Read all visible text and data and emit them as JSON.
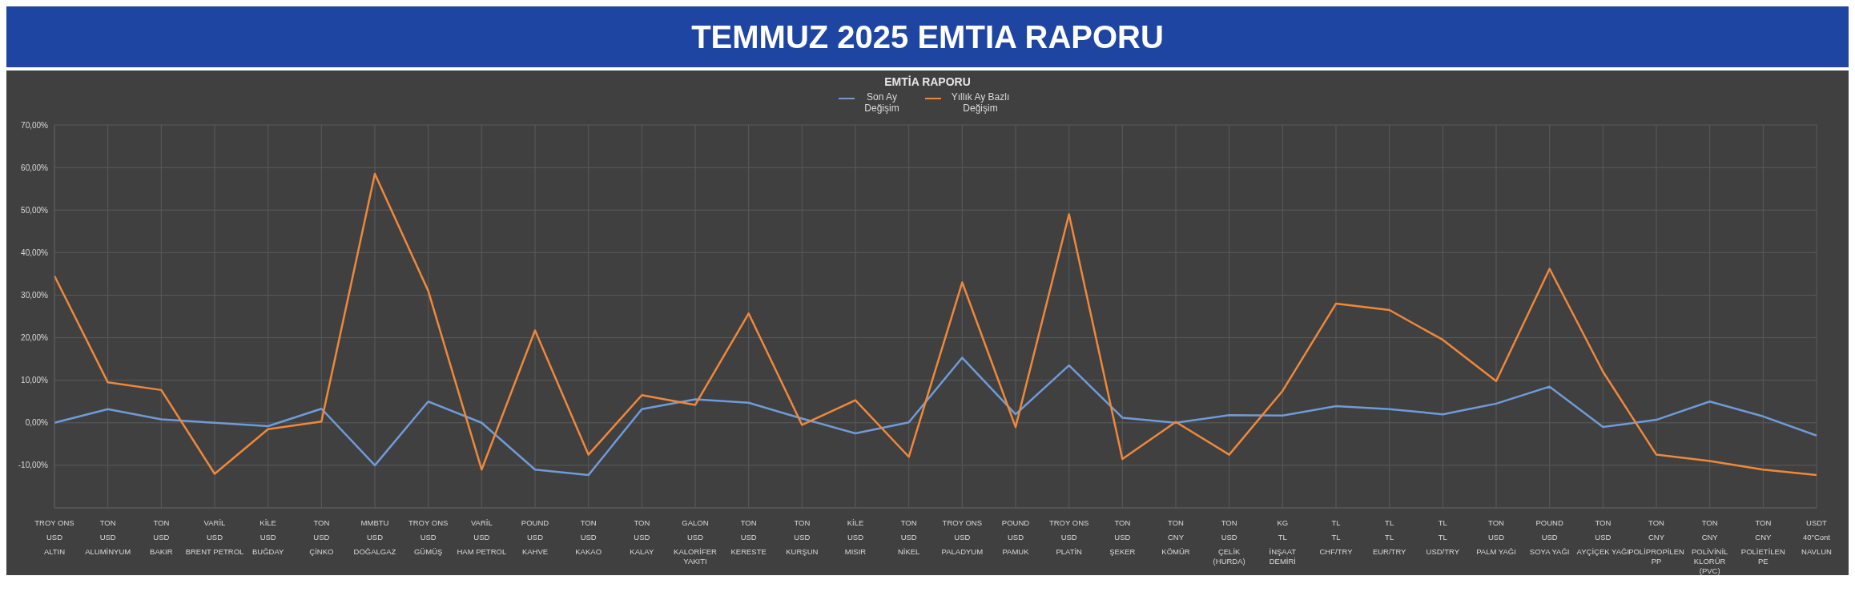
{
  "chart_data": {
    "type": "line",
    "title": "TEMMUZ 2025 EMTIA RAPORU",
    "subtitle": "EMTİA RAPORU",
    "categories": [
      "TROY ONS\nUSD\nALTIN",
      "TON\nUSD\nALUMİNYUM",
      "TON\nUSD\nBAKIR",
      "VARİL\nUSD\nBRENT PETROL",
      "KİLE\nUSD\nBUĞDAY",
      "TON\nUSD\nÇİNKO",
      "MMBTU\nUSD\nDOĞALGAZ",
      "TROY ONS\nUSD\nGÜMÜŞ",
      "VARİL\nUSD\nHAM PETROL",
      "POUND\nUSD\nKAHVE",
      "TON\nUSD\nKAKAO",
      "TON\nUSD\nKALAY",
      "GALON\nUSD\nKALORİFER YAKITI",
      "TON\nUSD\nKERESTE",
      "TON\nUSD\nKURŞUN",
      "KİLE\nUSD\nMISIR",
      "TON\nUSD\nNİKEL",
      "TROY ONS\nUSD\nPALADYUM",
      "POUND\nUSD\nPAMUK",
      "TROY ONS\nUSD\nPLATİN",
      "TON\nUSD\nŞEKER",
      "TON\nCNY\nKÖMÜR",
      "TON\nUSD\nÇELİK (HURDA)",
      "KG\nTL\nİNŞAAT DEMİRİ",
      "TL\nTL\nCHF/TRY",
      "TL\nTL\nEUR/TRY",
      "TL\nTL\nUSD/TRY",
      "TON\nUSD\nPALM YAĞI",
      "POUND\nUSD\nSOYA YAĞI",
      "TON\nUSD\nAYÇİÇEK YAĞI",
      "TON\nCNY\nPOLİPROPİLEN PP",
      "TON\nCNY\nPOLİVİNİL KLORÜR (PVC)",
      "TON\nCNY\nPOLİETİLEN PE",
      "USDT\n40\"Cont\nNAVLUN"
    ],
    "series": [
      {
        "name": "Son Ay Değişim",
        "color": "#6f9bd8",
        "values": [
          0,
          3.2,
          0.8,
          0,
          -0.8,
          3.3,
          -10,
          5,
          0,
          -11,
          -12.3,
          3.2,
          5.5,
          4.7,
          1,
          -2.5,
          0.1,
          15.3,
          2,
          13.5,
          1.2,
          0,
          1.8,
          1.7,
          3.9,
          3.2,
          2,
          4.5,
          8.5,
          -1,
          0.7,
          5,
          1.5,
          -3
        ]
      },
      {
        "name": "Yıllık Ay Bazlı Değişim",
        "color": "#f0883a",
        "values": [
          34.5,
          9.5,
          7.7,
          -12,
          -1.5,
          0.3,
          58.5,
          31,
          -11,
          21.7,
          -7.5,
          6.5,
          4.2,
          25.7,
          -0.5,
          5.3,
          -8,
          33,
          -1,
          49,
          -8.5,
          0.2,
          -7.5,
          7.5,
          28,
          26.5,
          19.5,
          9.8,
          36.2,
          12,
          -7.5,
          -9,
          -11,
          -12.3
        ]
      }
    ],
    "ylim": [
      -20,
      70
    ],
    "yticks": [
      {
        "value": -10,
        "label": "-10,00%"
      },
      {
        "value": 0,
        "label": "0,00%"
      },
      {
        "value": 10,
        "label": "10,00%"
      },
      {
        "value": 20,
        "label": "20,00%"
      },
      {
        "value": 30,
        "label": "30,00%"
      },
      {
        "value": 40,
        "label": "40,00%"
      },
      {
        "value": 50,
        "label": "50,00%"
      },
      {
        "value": 60,
        "label": "60,00%"
      },
      {
        "value": 70,
        "label": "70,00%"
      }
    ],
    "grid": true,
    "legend": "top",
    "marker": "none",
    "line_style": "solid"
  }
}
